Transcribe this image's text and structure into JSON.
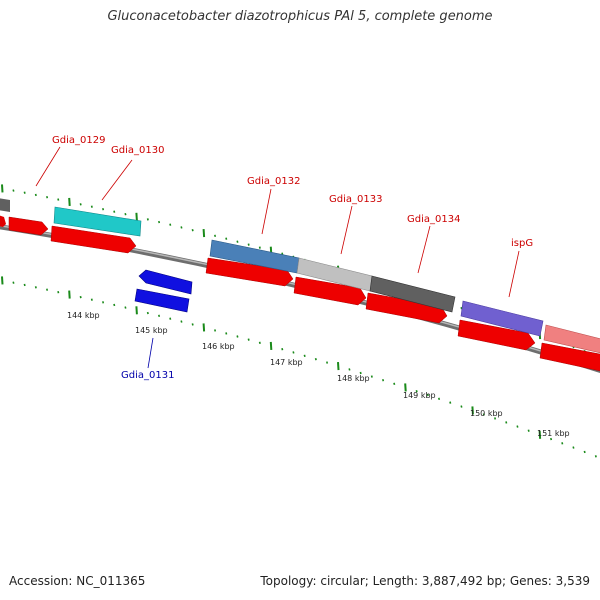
{
  "title": "Gluconacetobacter diazotrophicus PAl 5, complete genome",
  "footer": {
    "accession": "Accession: NC_011365",
    "stats": "Topology: circular; Length: 3,887,492 bp; Genes: 3,539"
  },
  "colors": {
    "forward_label": "#cc0000",
    "reverse_label": "#0000aa",
    "cds_red": "#ee0000",
    "tick_green": "#1a8a1a",
    "backbone": "#808080"
  },
  "ticks": [
    {
      "kbp": 144,
      "label": "144 kbp"
    },
    {
      "kbp": 145,
      "label": "145 kbp"
    },
    {
      "kbp": 146,
      "label": "146 kbp"
    },
    {
      "kbp": 147,
      "label": "147 kbp"
    },
    {
      "kbp": 148,
      "label": "148 kbp"
    },
    {
      "kbp": 149,
      "label": "149 kbp"
    },
    {
      "kbp": 150,
      "label": "150 kbp"
    },
    {
      "kbp": 151,
      "label": "151 kbp"
    }
  ],
  "genes": [
    {
      "name": "Gdia_0129",
      "strand": "forward",
      "color": "#cc0000"
    },
    {
      "name": "Gdia_0130",
      "strand": "forward",
      "color": "#cc0000"
    },
    {
      "name": "Gdia_0131",
      "strand": "reverse",
      "color": "#0000aa"
    },
    {
      "name": "Gdia_0132",
      "strand": "forward",
      "color": "#cc0000"
    },
    {
      "name": "Gdia_0133",
      "strand": "forward",
      "color": "#cc0000"
    },
    {
      "name": "Gdia_0134",
      "strand": "forward",
      "color": "#cc0000"
    },
    {
      "name": "ispG",
      "strand": "forward",
      "color": "#cc0000"
    }
  ],
  "feature_colors": [
    "#20c8c8",
    "#4a80b8",
    "#c0c0c0",
    "#606060",
    "#7060d0",
    "#f08080",
    "#1010e0"
  ]
}
